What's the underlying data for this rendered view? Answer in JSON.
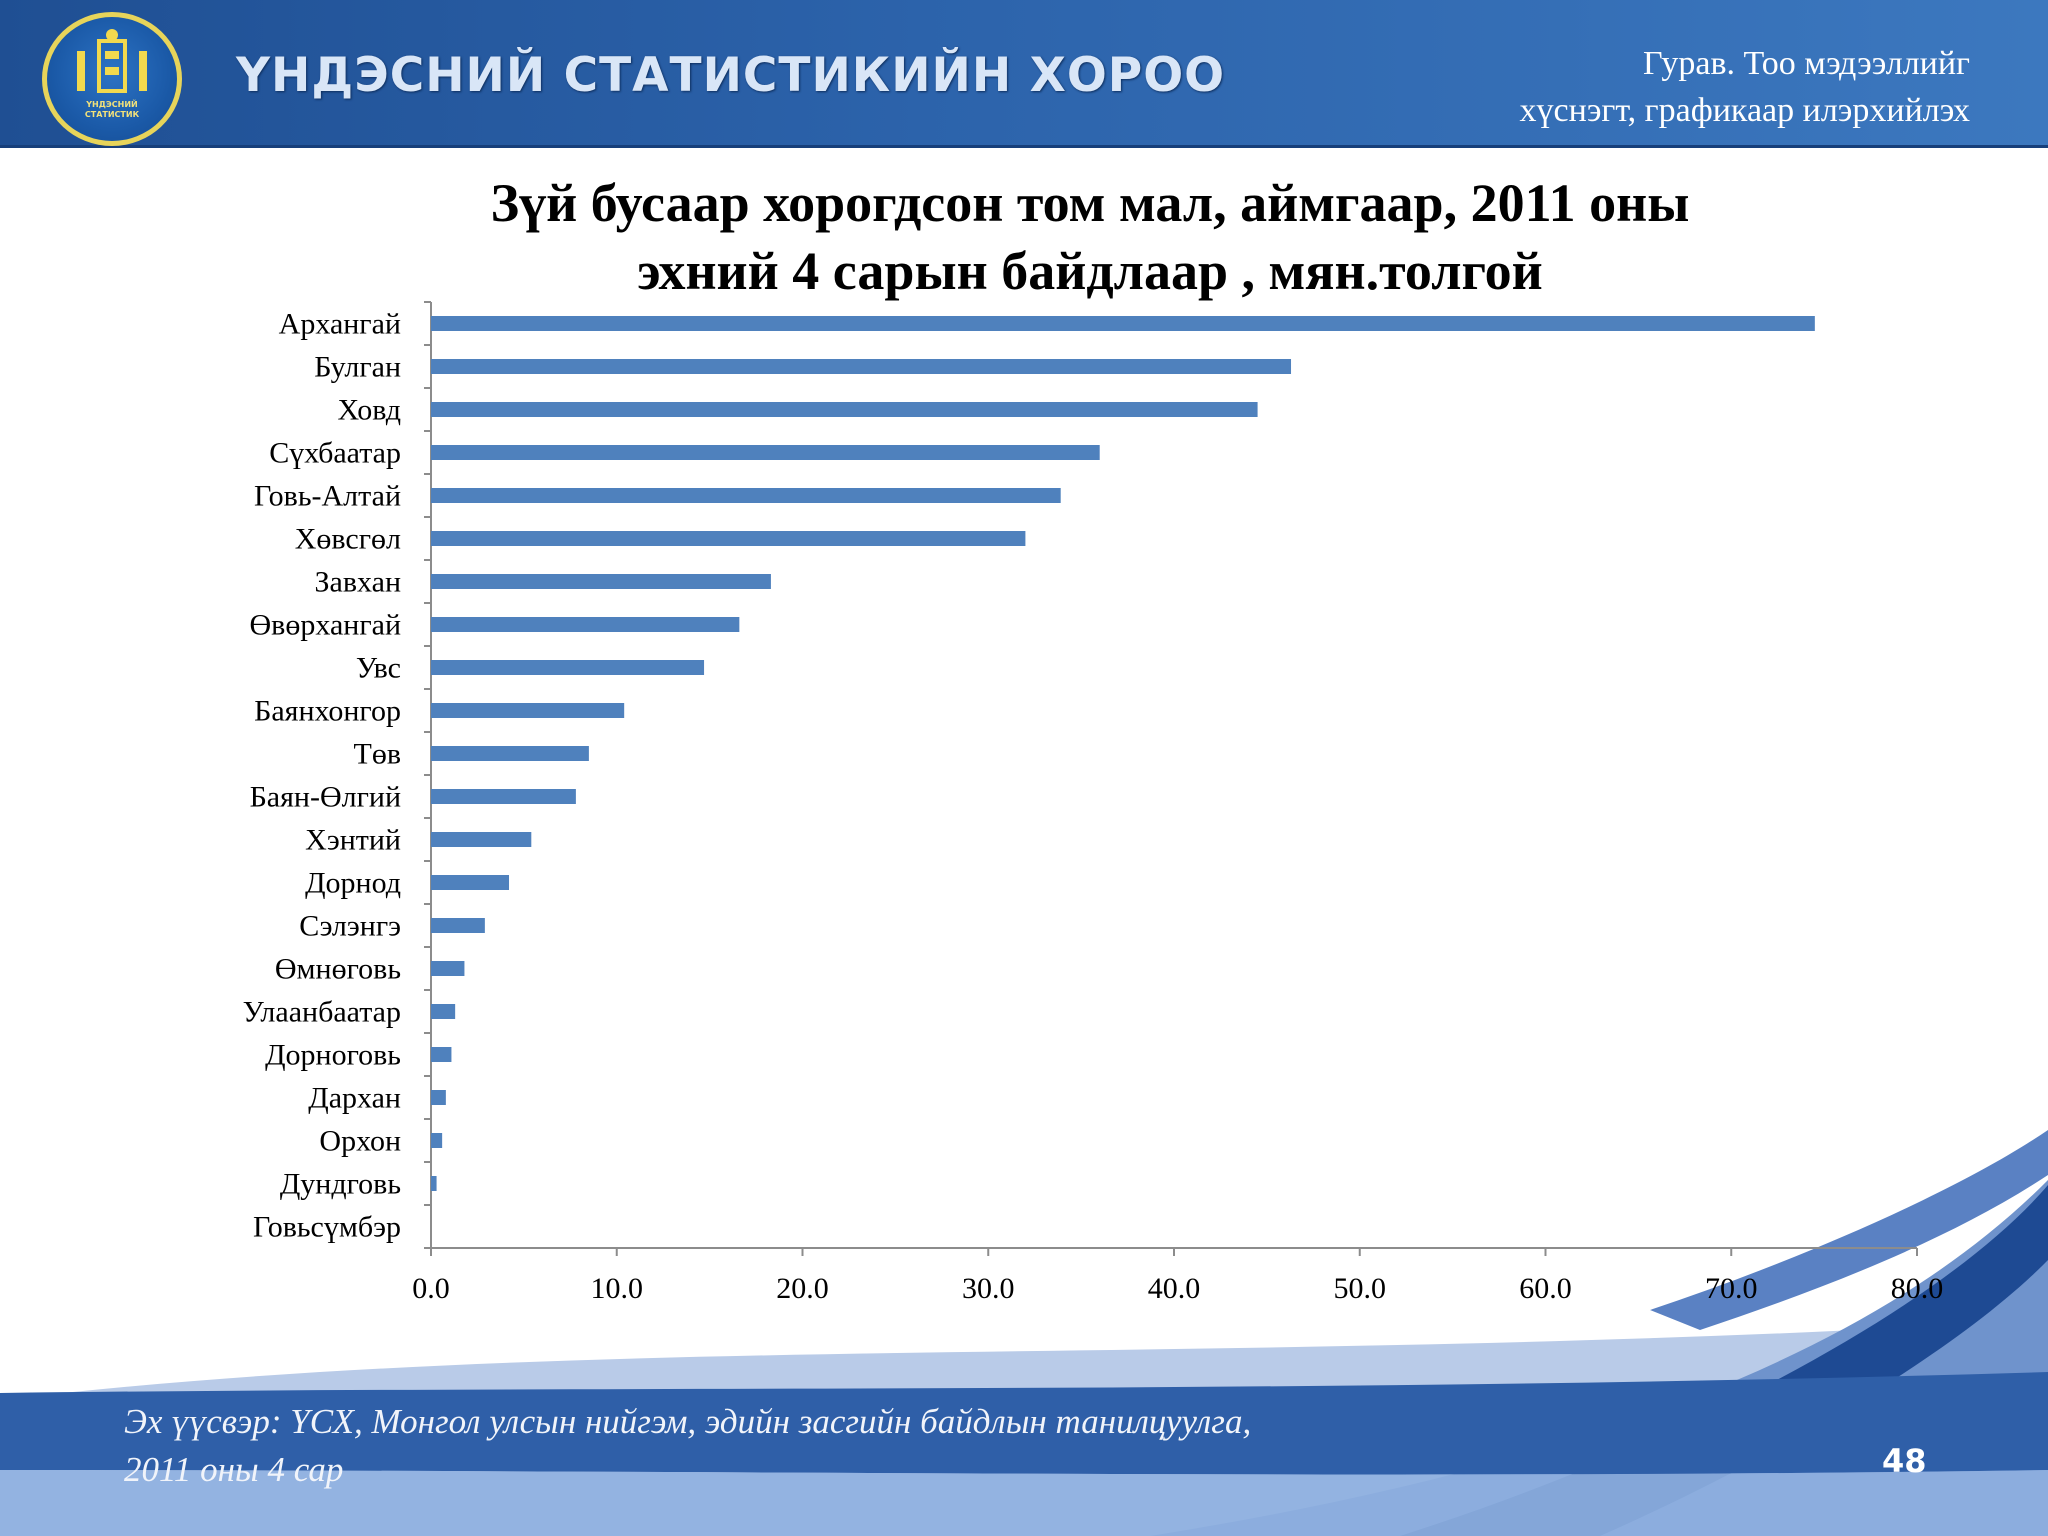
{
  "header": {
    "org_name": "ҮНДЭСНИЙ СТАТИСТИКИЙН ХОРОО",
    "logo_text_line1": "ҮНДЭСНИЙ",
    "logo_text_line2": "СТАТИСТИК",
    "section_line1": "Гурав. Тоо мэдээллийг",
    "section_line2": "хүснэгт, графикаар илэрхийлэх"
  },
  "chart_data": {
    "type": "bar",
    "orientation": "horizontal",
    "title_line1": "Зүй бусаар хорогдсон том мал, аймгаар, 2011 оны",
    "title_line2": "эхний 4 сарын байдлаар , мян.толгой",
    "categories": [
      "Архангай",
      "Булган",
      "Ховд",
      "Сүхбаатар",
      "Говь-Алтай",
      "Хөвсгөл",
      "Завхан",
      "Өвөрхангай",
      "Увс",
      "Баянхонгор",
      "Төв",
      "Баян-Өлгий",
      "Хэнтий",
      "Дорнод",
      "Сэлэнгэ",
      "Өмнөговь",
      "Улаанбаатар",
      "Дорноговь",
      "Дархан",
      "Орхон",
      "Дундговь",
      "Говьсүмбэр"
    ],
    "values": [
      74.5,
      46.3,
      44.5,
      36.0,
      33.9,
      32.0,
      18.3,
      16.6,
      14.7,
      10.4,
      8.5,
      7.8,
      5.4,
      4.2,
      2.9,
      1.8,
      1.3,
      1.1,
      0.8,
      0.6,
      0.3,
      0.0
    ],
    "xlim": [
      0,
      80
    ],
    "xticks": [
      "0.0",
      "10.0",
      "20.0",
      "30.0",
      "40.0",
      "50.0",
      "60.0",
      "70.0",
      "80.0"
    ],
    "bar_color": "#4f81bd",
    "grid": false,
    "legend": "none"
  },
  "footer": {
    "source_line1": "Эх үүсвэр: ҮСХ, Монгол улсын нийгэм, эдийн засгийн байдлын танилцуулга,",
    "source_line2": "2011 оны 4 сар",
    "page_number": "48"
  },
  "colors": {
    "header_bg": "#2c63ab",
    "footer_bg": "#2f5fa8",
    "bar": "#4f81bd"
  }
}
